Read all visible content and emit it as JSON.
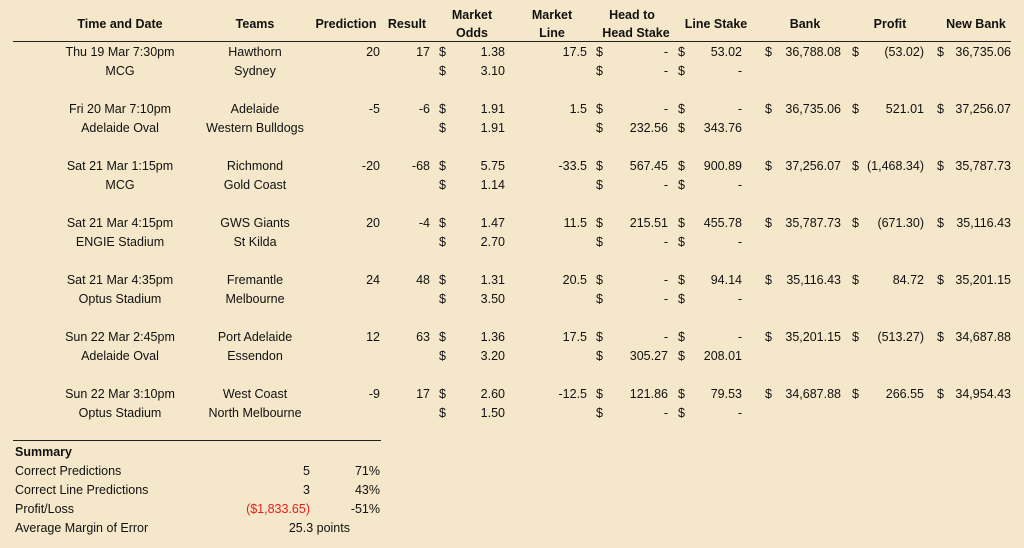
{
  "headers": {
    "time_date": "Time and Date",
    "teams": "Teams",
    "prediction": "Prediction",
    "result": "Result",
    "market_odds": [
      "Market",
      "Odds"
    ],
    "market_line": [
      "Market",
      "Line"
    ],
    "h2h_stake": [
      "Head to",
      "Head Stake"
    ],
    "line_stake": "Line Stake",
    "bank": "Bank",
    "profit": "Profit",
    "new_bank": "New Bank"
  },
  "games": [
    {
      "date": "Thu 19 Mar 7:30pm",
      "venue": "MCG",
      "home": "Hawthorn",
      "away": "Sydney",
      "prediction": "20",
      "result": "17",
      "odds_home": "1.38",
      "odds_away": "3.10",
      "line": "17.5",
      "h2h_home": "-",
      "h2h_away": "-",
      "ls_home": "53.02",
      "ls_away": "-",
      "bank": "36,788.08",
      "profit": "(53.02)",
      "new_bank": "36,735.06"
    },
    {
      "date": "Fri 20 Mar 7:10pm",
      "venue": "Adelaide Oval",
      "home": "Adelaide",
      "away": "Western Bulldogs",
      "prediction": "-5",
      "result": "-6",
      "odds_home": "1.91",
      "odds_away": "1.91",
      "line": "1.5",
      "h2h_home": "-",
      "h2h_away": "232.56",
      "ls_home": "-",
      "ls_away": "343.76",
      "bank": "36,735.06",
      "profit": "521.01",
      "new_bank": "37,256.07"
    },
    {
      "date": "Sat 21 Mar 1:15pm",
      "venue": "MCG",
      "home": "Richmond",
      "away": "Gold Coast",
      "prediction": "-20",
      "result": "-68",
      "odds_home": "5.75",
      "odds_away": "1.14",
      "line": "-33.5",
      "h2h_home": "567.45",
      "h2h_away": "-",
      "ls_home": "900.89",
      "ls_away": "-",
      "bank": "37,256.07",
      "profit": "(1,468.34)",
      "new_bank": "35,787.73"
    },
    {
      "date": "Sat 21 Mar 4:15pm",
      "venue": "ENGIE Stadium",
      "home": "GWS Giants",
      "away": "St Kilda",
      "prediction": "20",
      "result": "-4",
      "odds_home": "1.47",
      "odds_away": "2.70",
      "line": "11.5",
      "h2h_home": "215.51",
      "h2h_away": "-",
      "ls_home": "455.78",
      "ls_away": "-",
      "bank": "35,787.73",
      "profit": "(671.30)",
      "new_bank": "35,116.43"
    },
    {
      "date": "Sat 21 Mar 4:35pm",
      "venue": "Optus Stadium",
      "home": "Fremantle",
      "away": "Melbourne",
      "prediction": "24",
      "result": "48",
      "odds_home": "1.31",
      "odds_away": "3.50",
      "line": "20.5",
      "h2h_home": "-",
      "h2h_away": "-",
      "ls_home": "94.14",
      "ls_away": "-",
      "bank": "35,116.43",
      "profit": "84.72",
      "new_bank": "35,201.15"
    },
    {
      "date": "Sun 22 Mar 2:45pm",
      "venue": "Adelaide Oval",
      "home": "Port Adelaide",
      "away": "Essendon",
      "prediction": "12",
      "result": "63",
      "odds_home": "1.36",
      "odds_away": "3.20",
      "line": "17.5",
      "h2h_home": "-",
      "h2h_away": "305.27",
      "ls_home": "-",
      "ls_away": "208.01",
      "bank": "35,201.15",
      "profit": "(513.27)",
      "new_bank": "34,687.88"
    },
    {
      "date": "Sun 22 Mar 3:10pm",
      "venue": "Optus Stadium",
      "home": "West Coast",
      "away": "North Melbourne",
      "prediction": "-9",
      "result": "17",
      "odds_home": "2.60",
      "odds_away": "1.50",
      "line": "-12.5",
      "h2h_home": "121.86",
      "h2h_away": "-",
      "ls_home": "79.53",
      "ls_away": "-",
      "bank": "34,687.88",
      "profit": "266.55",
      "new_bank": "34,954.43"
    }
  ],
  "currency": "$",
  "summary": {
    "title": "Summary",
    "rows": [
      {
        "label": "Correct Predictions",
        "value": "5",
        "pct": "71%"
      },
      {
        "label": "Correct Line Predictions",
        "value": "3",
        "pct": "43%"
      },
      {
        "label": "Profit/Loss",
        "value": "($1,833.65)",
        "pct": "-51%"
      },
      {
        "label": "Average Margin of Error",
        "value": "25.3 points",
        "pct": ""
      }
    ]
  },
  "colors": {
    "background": "#f5e7c9",
    "loss_red": "#e0201c"
  }
}
